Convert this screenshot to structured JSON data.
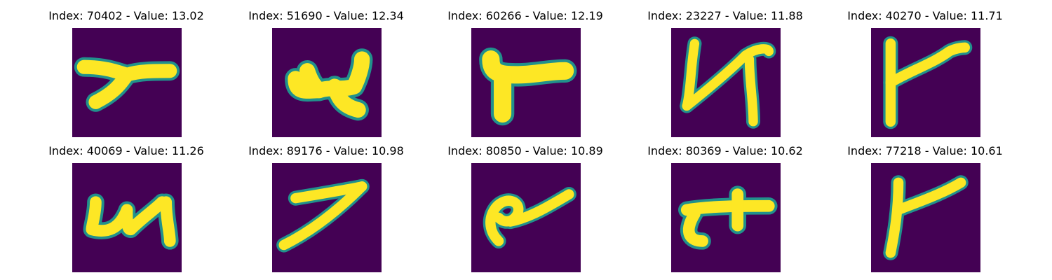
{
  "colors": {
    "background": "#440154",
    "stroke": "#fde725",
    "edge": "#21918c"
  },
  "panels": [
    {
      "title": "Index: 70402 - Value: 13.02",
      "glyph": "thick y shape"
    },
    {
      "title": "Index: 51690 - Value: 12.34",
      "glyph": "compact 4 shape"
    },
    {
      "title": "Index: 60266 - Value: 12.19",
      "glyph": "T shape"
    },
    {
      "title": "Index: 23227 - Value: 11.88",
      "glyph": "N shape"
    },
    {
      "title": "Index: 40270 - Value: 11.71",
      "glyph": "Y shape"
    },
    {
      "title": "Index: 40069 - Value: 11.26",
      "glyph": "open 4 shape"
    },
    {
      "title": "Index: 89176 - Value: 10.98",
      "glyph": "7 shape"
    },
    {
      "title": "Index: 80850 - Value: 10.89",
      "glyph": "looped stroke"
    },
    {
      "title": "Index: 80369 - Value: 10.62",
      "glyph": "t shape"
    },
    {
      "title": "Index: 77218 - Value: 10.61",
      "glyph": "Y shape"
    }
  ]
}
